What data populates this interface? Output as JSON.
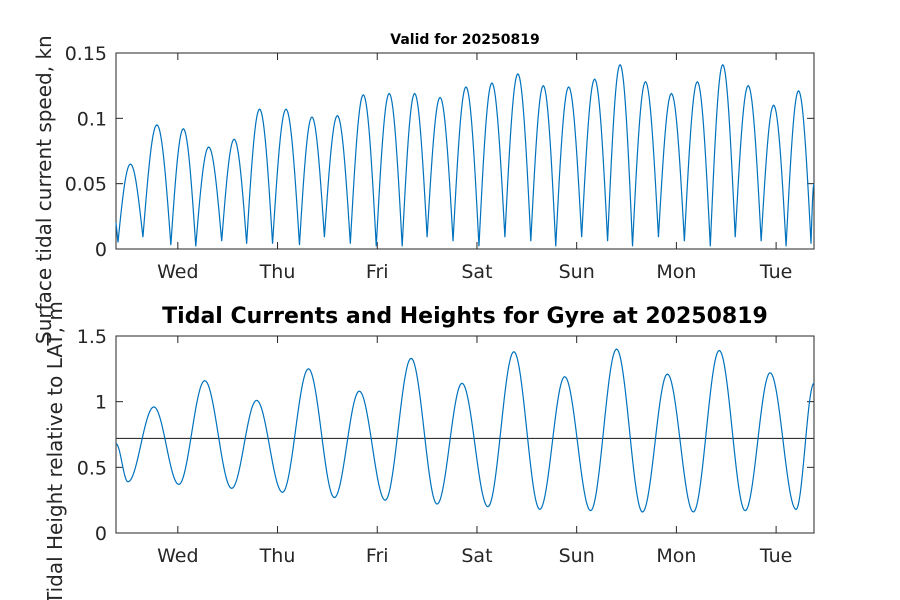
{
  "chart_data": [
    {
      "type": "line",
      "title": "Valid for 20250819",
      "ylabel": "Surface tidal current speed, kn",
      "xlim": [
        0,
        7
      ],
      "ylim": [
        0,
        0.15
      ],
      "yticks": [
        0,
        0.05,
        0.1,
        0.15
      ],
      "yticklabels": [
        "0",
        "0.05",
        "0.1",
        "0.15"
      ],
      "xticks": [
        0.62,
        1.62,
        2.62,
        3.62,
        4.62,
        5.62,
        6.62
      ],
      "xticklabels": [
        "Wed",
        "Thu",
        "Fri",
        "Sat",
        "Sun",
        "Mon",
        "Tue"
      ],
      "grid": false,
      "colors": {
        "line": "#0072BD",
        "axis": "#262626"
      },
      "peaks": [
        {
          "x": 0.16,
          "y": 0.065
        },
        {
          "x": 0.41,
          "y": 0.095
        },
        {
          "x": 0.68,
          "y": 0.092
        },
        {
          "x": 0.93,
          "y": 0.078
        },
        {
          "x": 1.19,
          "y": 0.084
        },
        {
          "x": 1.44,
          "y": 0.107
        },
        {
          "x": 1.71,
          "y": 0.107
        },
        {
          "x": 1.96,
          "y": 0.101
        },
        {
          "x": 2.22,
          "y": 0.102
        },
        {
          "x": 2.48,
          "y": 0.118
        },
        {
          "x": 2.74,
          "y": 0.119
        },
        {
          "x": 2.99,
          "y": 0.119
        },
        {
          "x": 3.25,
          "y": 0.116
        },
        {
          "x": 3.51,
          "y": 0.124
        },
        {
          "x": 3.77,
          "y": 0.127
        },
        {
          "x": 4.02,
          "y": 0.134
        },
        {
          "x": 4.28,
          "y": 0.125
        },
        {
          "x": 4.53,
          "y": 0.124
        },
        {
          "x": 4.8,
          "y": 0.13
        },
        {
          "x": 5.05,
          "y": 0.141
        },
        {
          "x": 5.31,
          "y": 0.128
        },
        {
          "x": 5.56,
          "y": 0.119
        },
        {
          "x": 5.83,
          "y": 0.128
        },
        {
          "x": 6.08,
          "y": 0.141
        },
        {
          "x": 6.34,
          "y": 0.125
        },
        {
          "x": 6.59,
          "y": 0.11
        },
        {
          "x": 6.86,
          "y": 0.121
        }
      ],
      "troughs": [
        {
          "x": 0.02,
          "y": 0.005
        },
        {
          "x": 0.27,
          "y": 0.009
        },
        {
          "x": 0.55,
          "y": 0.003
        },
        {
          "x": 0.8,
          "y": 0.002
        },
        {
          "x": 1.06,
          "y": 0.006
        },
        {
          "x": 1.31,
          "y": 0.004
        },
        {
          "x": 1.57,
          "y": 0.004
        },
        {
          "x": 1.84,
          "y": 0.003
        },
        {
          "x": 2.09,
          "y": 0.009
        },
        {
          "x": 2.35,
          "y": 0.004
        },
        {
          "x": 2.61,
          "y": 0.002
        },
        {
          "x": 2.87,
          "y": 0.002
        },
        {
          "x": 3.12,
          "y": 0.009
        },
        {
          "x": 3.38,
          "y": 0.006
        },
        {
          "x": 3.64,
          "y": 0.002
        },
        {
          "x": 3.9,
          "y": 0.009
        },
        {
          "x": 4.16,
          "y": 0.006
        },
        {
          "x": 4.41,
          "y": 0.002
        },
        {
          "x": 4.67,
          "y": 0.009
        },
        {
          "x": 4.93,
          "y": 0.006
        },
        {
          "x": 5.18,
          "y": 0.002
        },
        {
          "x": 5.44,
          "y": 0.009
        },
        {
          "x": 5.7,
          "y": 0.006
        },
        {
          "x": 5.96,
          "y": 0.002
        },
        {
          "x": 6.21,
          "y": 0.009
        },
        {
          "x": 6.47,
          "y": 0.006
        },
        {
          "x": 6.72,
          "y": 0.002
        },
        {
          "x": 6.97,
          "y": 0.004
        }
      ],
      "end": {
        "x": 7.0,
        "y": 0.05
      }
    },
    {
      "type": "line",
      "title": "Tidal Currents and Heights for Gyre at 20250819",
      "ylabel": "Tidal Height relative to LAT, m",
      "xlim": [
        0,
        7
      ],
      "ylim": [
        0,
        1.5
      ],
      "yticks": [
        0,
        0.5,
        1,
        1.5
      ],
      "yticklabels": [
        "0",
        "0.5",
        "1",
        "1.5"
      ],
      "xticks": [
        0.62,
        1.62,
        2.62,
        3.62,
        4.62,
        5.62,
        6.62
      ],
      "xticklabels": [
        "Wed",
        "Thu",
        "Fri",
        "Sat",
        "Sun",
        "Mon",
        "Tue"
      ],
      "grid": false,
      "reference_line": {
        "y": 0.72
      },
      "colors": {
        "line": "#0072BD",
        "reference": "#333333",
        "axis": "#262626"
      },
      "extrema": [
        {
          "x": 0.0,
          "y": 0.68
        },
        {
          "x": 0.12,
          "y": 0.39
        },
        {
          "x": 0.38,
          "y": 0.96
        },
        {
          "x": 0.63,
          "y": 0.37
        },
        {
          "x": 0.89,
          "y": 1.16
        },
        {
          "x": 1.16,
          "y": 0.34
        },
        {
          "x": 1.41,
          "y": 1.01
        },
        {
          "x": 1.67,
          "y": 0.31
        },
        {
          "x": 1.93,
          "y": 1.25
        },
        {
          "x": 2.19,
          "y": 0.27
        },
        {
          "x": 2.44,
          "y": 1.08
        },
        {
          "x": 2.7,
          "y": 0.25
        },
        {
          "x": 2.96,
          "y": 1.33
        },
        {
          "x": 3.22,
          "y": 0.22
        },
        {
          "x": 3.47,
          "y": 1.14
        },
        {
          "x": 3.73,
          "y": 0.2
        },
        {
          "x": 3.99,
          "y": 1.38
        },
        {
          "x": 4.25,
          "y": 0.18
        },
        {
          "x": 4.5,
          "y": 1.19
        },
        {
          "x": 4.76,
          "y": 0.17
        },
        {
          "x": 5.02,
          "y": 1.4
        },
        {
          "x": 5.28,
          "y": 0.16
        },
        {
          "x": 5.53,
          "y": 1.21
        },
        {
          "x": 5.79,
          "y": 0.16
        },
        {
          "x": 6.05,
          "y": 1.39
        },
        {
          "x": 6.31,
          "y": 0.17
        },
        {
          "x": 6.56,
          "y": 1.22
        },
        {
          "x": 6.82,
          "y": 0.18
        },
        {
          "x": 7.0,
          "y": 1.14
        }
      ]
    }
  ]
}
